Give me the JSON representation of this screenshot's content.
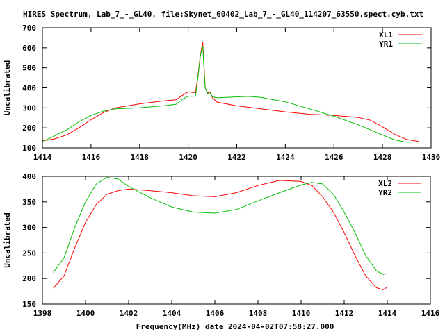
{
  "title": "HIRES Spectrum, Lab_7_-_GL40, file:Skynet_60402_Lab_7_-_GL40_114207_63550.spect.cyb.txt",
  "footer": "Frequency(MHz) date 2024-04-02T07:58:27.000",
  "colors": {
    "red": "#ff0000",
    "green": "#00c000"
  },
  "chart_data": [
    {
      "type": "line",
      "ylabel": "Uncalibrated",
      "xlim": [
        1414,
        1430
      ],
      "ylim": [
        100,
        700
      ],
      "xticks": [
        "1414",
        "1416",
        "1418",
        "1420",
        "1422",
        "1424",
        "1426",
        "1428",
        "1430"
      ],
      "yticks": [
        "100",
        "200",
        "300",
        "400",
        "500",
        "600",
        "700"
      ],
      "legend_position": "top-right",
      "series": [
        {
          "name": "XL1",
          "color": "#ff0000",
          "x": [
            1414,
            1414.5,
            1415,
            1415.5,
            1416,
            1416.5,
            1417,
            1418,
            1419,
            1419.5,
            1419.8,
            1420,
            1420.3,
            1420.4,
            1420.5,
            1420.6,
            1420.65,
            1420.7,
            1420.8,
            1420.9,
            1421,
            1421.2,
            1422,
            1423,
            1424,
            1425,
            1426,
            1427,
            1427.5,
            1428,
            1428.5,
            1429,
            1429.5
          ],
          "y": [
            135,
            145,
            165,
            200,
            240,
            275,
            300,
            320,
            335,
            340,
            365,
            380,
            375,
            460,
            560,
            630,
            520,
            400,
            375,
            380,
            350,
            328,
            310,
            295,
            280,
            268,
            262,
            252,
            238,
            205,
            168,
            142,
            132
          ]
        },
        {
          "name": "YR1",
          "color": "#00c000",
          "x": [
            1414,
            1414.5,
            1415,
            1415.5,
            1416,
            1416.5,
            1417,
            1418,
            1419,
            1419.5,
            1419.8,
            1420,
            1420.3,
            1420.4,
            1420.5,
            1420.6,
            1420.65,
            1420.7,
            1420.8,
            1420.9,
            1421,
            1421.2,
            1422,
            1422.5,
            1423,
            1424,
            1425,
            1426,
            1427,
            1428,
            1428.5,
            1429,
            1429.5
          ],
          "y": [
            132,
            160,
            190,
            230,
            262,
            283,
            295,
            300,
            310,
            318,
            345,
            358,
            358,
            450,
            560,
            610,
            500,
            400,
            370,
            375,
            355,
            350,
            355,
            357,
            352,
            330,
            295,
            258,
            215,
            165,
            140,
            128,
            130
          ]
        }
      ]
    },
    {
      "type": "line",
      "ylabel": "Uncalibrated",
      "xlim": [
        1398,
        1416
      ],
      "ylim": [
        150,
        400
      ],
      "xticks": [
        "1398",
        "1400",
        "1402",
        "1404",
        "1406",
        "1408",
        "1410",
        "1412",
        "1414",
        "1416"
      ],
      "yticks": [
        "150",
        "200",
        "250",
        "300",
        "350",
        "400"
      ],
      "legend_position": "top-right",
      "series": [
        {
          "name": "XL2",
          "color": "#ff0000",
          "x": [
            1398.5,
            1399,
            1399.5,
            1400,
            1400.5,
            1401,
            1401.5,
            1402,
            1403,
            1404,
            1405,
            1406,
            1407,
            1408,
            1409,
            1410,
            1410.5,
            1411,
            1411.5,
            1412,
            1412.5,
            1413,
            1413.5,
            1413.8,
            1414
          ],
          "y": [
            181,
            205,
            260,
            310,
            345,
            365,
            372,
            375,
            372,
            368,
            362,
            360,
            368,
            382,
            392,
            390,
            382,
            360,
            330,
            290,
            245,
            205,
            182,
            178,
            183
          ]
        },
        {
          "name": "YR2",
          "color": "#00c000",
          "x": [
            1398.5,
            1399,
            1399.5,
            1400,
            1400.5,
            1401,
            1401.5,
            1402,
            1403,
            1404,
            1405,
            1406,
            1407,
            1408,
            1409,
            1410,
            1410.5,
            1411,
            1411.5,
            1412,
            1412.5,
            1413,
            1413.5,
            1413.8,
            1414
          ],
          "y": [
            212,
            240,
            300,
            350,
            385,
            398,
            395,
            380,
            358,
            340,
            330,
            328,
            335,
            352,
            368,
            383,
            388,
            385,
            365,
            330,
            290,
            245,
            215,
            208,
            210
          ]
        }
      ]
    }
  ]
}
